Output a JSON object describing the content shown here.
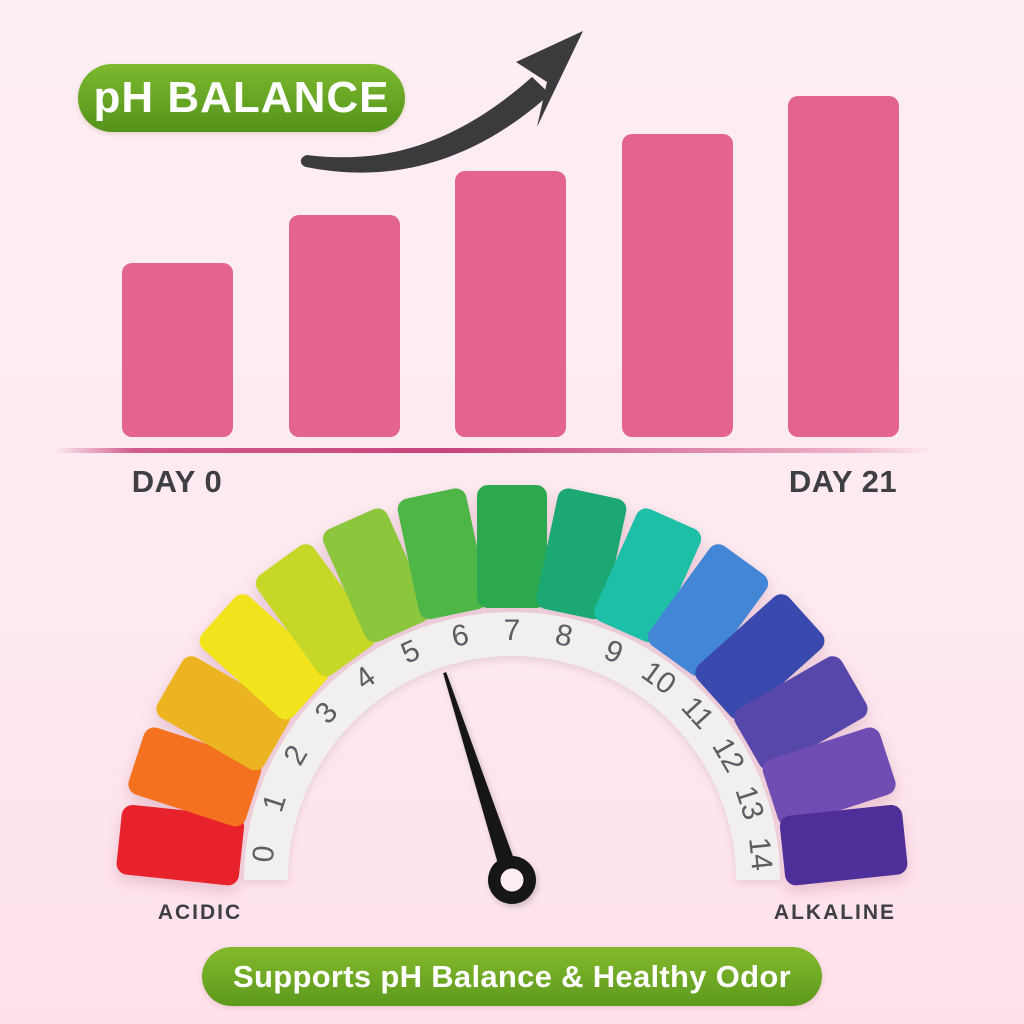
{
  "colors": {
    "bg_top": "#fdeef3",
    "bg_bottom": "#ffe1eb",
    "badge_green_top": "#7cb92f",
    "badge_green_bottom": "#54931a",
    "bar_pink": "#e2648f",
    "baseline_pink": "#c6457c",
    "arrow_dark": "#3b3a3c",
    "label_dark": "#3e3e44",
    "ring_white": "#f1f0ee",
    "tick_gray": "#5d5d63",
    "needle_black": "#161616",
    "hub_center": "#fceff3",
    "pill_green_top": "#85ba2d",
    "pill_green_bottom": "#5c991c",
    "text_white": "#ffffff"
  },
  "badge": {
    "label": "pH BALANCE"
  },
  "chart_data": [
    {
      "type": "bar",
      "title": "pH BALANCE",
      "categories": [
        "DAY 0",
        "",
        "",
        "",
        "DAY 21"
      ],
      "values": [
        51,
        65,
        78,
        89,
        100
      ],
      "value_note": "relative bar heights as % of tallest bar; no numeric axis shown",
      "bar_color": "#e2648f",
      "xlabel": "",
      "ylabel": "",
      "grid": false,
      "legend": false,
      "annotations": [
        "hand-drawn curved upward trend arrow above the bars"
      ]
    },
    {
      "type": "gauge",
      "title": "pH scale dial",
      "scale_min": 0,
      "scale_max": 14,
      "tick_labels": [
        "0",
        "1",
        "2",
        "3",
        "4",
        "5",
        "6",
        "7",
        "8",
        "9",
        "10",
        "11",
        "12",
        "13",
        "14"
      ],
      "needle_value": 5.5,
      "left_label": "ACIDIC",
      "right_label": "ALKALINE",
      "segment_colors": [
        "#e8222b",
        "#f4711f",
        "#edb422",
        "#f1e31c",
        "#c5d827",
        "#8cc63c",
        "#4eb647",
        "#2ca84e",
        "#1ba873",
        "#1dbfa7",
        "#4486d6",
        "#3a49ad",
        "#5847ab",
        "#6f4db2",
        "#4e2f99"
      ]
    }
  ],
  "footer_pill": {
    "label": "Supports pH Balance & Healthy Odor"
  }
}
